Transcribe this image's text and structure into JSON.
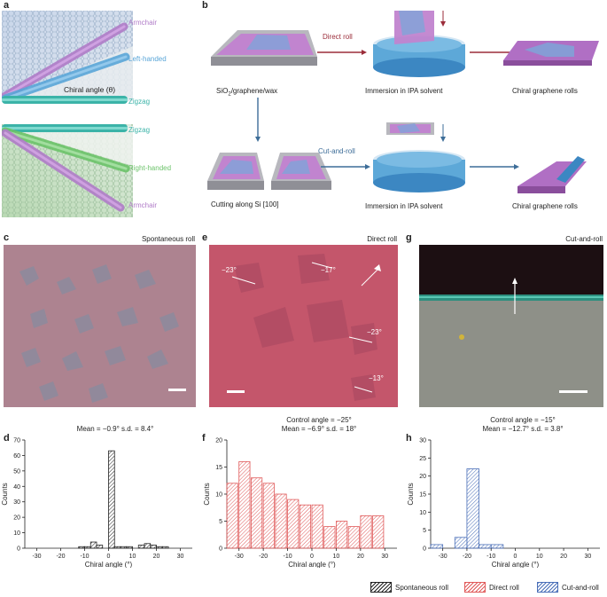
{
  "panels": {
    "a": "a",
    "b": "b",
    "c": "c",
    "d": "d",
    "e": "e",
    "f": "f",
    "g": "g",
    "h": "h"
  },
  "panel_a": {
    "armchair_top": "Armchair",
    "left_handed": "Left-handed",
    "chiral_angle": "Chiral angle (θ)",
    "zigzag_top": "Zigzag",
    "zigzag_bottom": "Zigzag",
    "right_handed": "Right-handed",
    "armchair_bottom": "Armchair",
    "colors": {
      "armchair": "#b07cc8",
      "left": "#5aa6d8",
      "zigzag": "#3bb3a8",
      "right": "#6cc36a"
    }
  },
  "panel_b": {
    "direct_roll": "Direct roll",
    "cut_and_roll": "Cut-and-roll",
    "substrate": "SiO",
    "substrate_sub": "2",
    "substrate_rest": "/graphene/wax",
    "immersion_top": "Immersion in IPA solvent",
    "rolls_top": "Chiral graphene rolls",
    "cutting": "Cutting along Si [100]",
    "immersion_bottom": "Immersion in IPA solvent",
    "rolls_bottom": "Chiral graphene rolls"
  },
  "panel_c": {
    "title": "Spontaneous roll"
  },
  "panel_e": {
    "title": "Direct roll",
    "angles": [
      "−23°",
      "−17°",
      "−23°",
      "−13°"
    ]
  },
  "panel_g": {
    "title": "Cut-and-roll"
  },
  "chart_data": [
    {
      "id": "d",
      "type": "bar",
      "title_line1": "Mean = −0.9° s.d. = 8.4°",
      "xlabel": "Chiral angle (°)",
      "ylabel": "Counts",
      "xlim": [
        -35,
        35
      ],
      "ylim": [
        0,
        70
      ],
      "xticks": [
        -30,
        -20,
        -10,
        0,
        10,
        20,
        30
      ],
      "yticks": [
        0,
        10,
        20,
        30,
        40,
        50,
        60,
        70
      ],
      "bin_width": 2.5,
      "bins": [
        -15,
        -12.5,
        -10,
        -7.5,
        -5,
        -2.5,
        0,
        2.5,
        5,
        7.5,
        10,
        12.5,
        15,
        17.5,
        20,
        22.5
      ],
      "values": [
        0,
        1,
        1,
        4,
        2,
        0,
        63,
        1,
        1,
        1,
        0,
        2,
        3,
        2,
        1,
        1
      ],
      "color": "#222222"
    },
    {
      "id": "f",
      "type": "bar",
      "title_line1": "Control angle = −25°",
      "title_line2": "Mean = −6.9° s.d. = 18°",
      "xlabel": "Chiral angle (°)",
      "ylabel": "Counts",
      "xlim": [
        -35,
        35
      ],
      "ylim": [
        0,
        20
      ],
      "xticks": [
        -30,
        -20,
        -10,
        0,
        10,
        20,
        30
      ],
      "yticks": [
        0,
        5,
        10,
        15,
        20
      ],
      "bin_width": 5,
      "bins": [
        -35,
        -30,
        -25,
        -20,
        -15,
        -10,
        -5,
        0,
        5,
        10,
        15,
        20,
        25
      ],
      "bin_width_override": 4.5,
      "values": [
        12,
        16,
        13,
        12,
        10,
        9,
        8,
        8,
        4,
        5,
        4,
        6,
        6
      ],
      "color": "#e05a5a"
    },
    {
      "id": "h",
      "type": "bar",
      "title_line1": "Control angle = −15°",
      "title_line2": "Mean = −12.7° s.d. = 3.8°",
      "xlabel": "Chiral angle (°)",
      "ylabel": "Counts",
      "xlim": [
        -35,
        35
      ],
      "ylim": [
        0,
        30
      ],
      "xticks": [
        -30,
        -20,
        -10,
        0,
        10,
        20,
        30
      ],
      "yticks": [
        0,
        5,
        10,
        15,
        20,
        25,
        30
      ],
      "bin_width": 5,
      "bins": [
        -35,
        -30,
        -25,
        -20,
        -15,
        -10
      ],
      "values": [
        1,
        0,
        3,
        22,
        1,
        1
      ],
      "color": "#4a6fb8"
    }
  ],
  "legend": [
    {
      "label": "Spontaneous roll",
      "color": "#222222"
    },
    {
      "label": "Direct roll",
      "color": "#e05a5a"
    },
    {
      "label": "Cut-and-roll",
      "color": "#4a6fb8"
    }
  ]
}
